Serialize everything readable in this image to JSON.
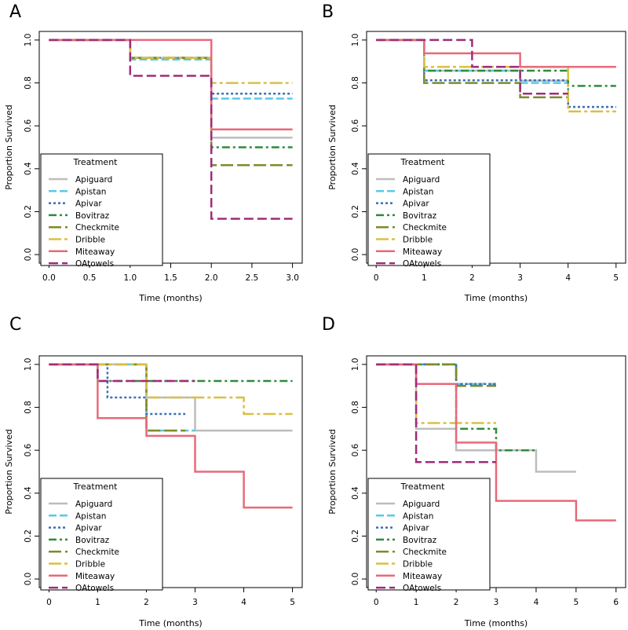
{
  "colors": {
    "Apiguard": "#bdbdbd",
    "Apistan": "#5bc8e8",
    "Apivar": "#3a6fb5",
    "Bovitraz": "#2e8b3a",
    "Checkmite": "#7d8b2a",
    "Dribble": "#d9c043",
    "Miteaway": "#e8697a",
    "OAtowels": "#a02c7a"
  },
  "legend": {
    "title": "Treatment",
    "items": [
      "Apiguard",
      "Apistan",
      "Apivar",
      "Bovitraz",
      "Checkmite",
      "Dribble",
      "Miteaway",
      "OAtowels"
    ]
  },
  "chart_data": [
    {
      "type": "line",
      "panel_label": "A",
      "xlabel": "Time (months)",
      "ylabel": "Proportion Survived",
      "xlim": [
        0,
        3
      ],
      "ylim": [
        0,
        1
      ],
      "xticks": [
        "0.0",
        "0.5",
        "1.0",
        "1.5",
        "2.0",
        "2.5",
        "3.0"
      ],
      "xtick_values": [
        0,
        0.5,
        1,
        1.5,
        2,
        2.5,
        3
      ],
      "yticks": [
        "0.0",
        "0.2",
        "0.4",
        "0.6",
        "0.8",
        "1.0"
      ],
      "series": [
        {
          "name": "Apiguard",
          "steps": [
            [
              0,
              1.0
            ],
            [
              1,
              0.917
            ],
            [
              2,
              0.545
            ],
            [
              3,
              0.545
            ]
          ]
        },
        {
          "name": "Apistan",
          "steps": [
            [
              0,
              1.0
            ],
            [
              1,
              0.909
            ],
            [
              2,
              0.727
            ],
            [
              3,
              0.727
            ]
          ]
        },
        {
          "name": "Apivar",
          "steps": [
            [
              0,
              1.0
            ],
            [
              1,
              0.917
            ],
            [
              2,
              0.75
            ],
            [
              3,
              0.75
            ]
          ]
        },
        {
          "name": "Bovitraz",
          "steps": [
            [
              0,
              1.0
            ],
            [
              1,
              0.917
            ],
            [
              2,
              0.5
            ],
            [
              3,
              0.5
            ]
          ]
        },
        {
          "name": "Checkmite",
          "steps": [
            [
              0,
              1.0
            ],
            [
              1,
              0.917
            ],
            [
              2,
              0.417
            ],
            [
              3,
              0.417
            ]
          ]
        },
        {
          "name": "Dribble",
          "steps": [
            [
              0,
              1.0
            ],
            [
              1,
              0.917
            ],
            [
              2,
              0.8
            ],
            [
              3,
              0.8
            ]
          ]
        },
        {
          "name": "Miteaway",
          "steps": [
            [
              0,
              1.0
            ],
            [
              2,
              0.583
            ],
            [
              3,
              0.583
            ]
          ]
        },
        {
          "name": "OAtowels",
          "steps": [
            [
              0,
              1.0
            ],
            [
              1,
              0.833
            ],
            [
              2,
              0.167
            ],
            [
              3,
              0.167
            ]
          ]
        }
      ]
    },
    {
      "type": "line",
      "panel_label": "B",
      "xlabel": "Time (months)",
      "ylabel": "Proportion Survived",
      "xlim": [
        0,
        5
      ],
      "ylim": [
        0,
        1
      ],
      "xticks": [
        "0",
        "1",
        "2",
        "3",
        "4",
        "5"
      ],
      "xtick_values": [
        0,
        1,
        2,
        3,
        4,
        5
      ],
      "yticks": [
        "0.0",
        "0.2",
        "0.4",
        "0.6",
        "0.8",
        "1.0"
      ],
      "series": [
        {
          "name": "Apiguard",
          "steps": [
            [
              0,
              1.0
            ],
            [
              1,
              0.857
            ],
            [
              3,
              0.81
            ],
            [
              4,
              0.81
            ]
          ]
        },
        {
          "name": "Apistan",
          "steps": [
            [
              0,
              1.0
            ],
            [
              1,
              0.857
            ],
            [
              3,
              0.8
            ],
            [
              4,
              0.8
            ]
          ]
        },
        {
          "name": "Apivar",
          "steps": [
            [
              0,
              1.0
            ],
            [
              1,
              0.812
            ],
            [
              4,
              0.688
            ],
            [
              5,
              0.688
            ]
          ]
        },
        {
          "name": "Bovitraz",
          "steps": [
            [
              0,
              1.0
            ],
            [
              1,
              0.857
            ],
            [
              4,
              0.786
            ],
            [
              5,
              0.786
            ]
          ]
        },
        {
          "name": "Checkmite",
          "steps": [
            [
              0,
              1.0
            ],
            [
              1,
              0.8
            ],
            [
              3,
              0.733
            ],
            [
              4,
              0.733
            ]
          ]
        },
        {
          "name": "Dribble",
          "steps": [
            [
              0,
              1.0
            ],
            [
              1,
              0.875
            ],
            [
              4,
              0.667
            ],
            [
              5,
              0.667
            ]
          ]
        },
        {
          "name": "Miteaway",
          "steps": [
            [
              0,
              1.0
            ],
            [
              1,
              0.938
            ],
            [
              3,
              0.875
            ],
            [
              5,
              0.875
            ]
          ]
        },
        {
          "name": "OAtowels",
          "steps": [
            [
              0,
              1.0
            ],
            [
              2,
              0.875
            ],
            [
              3,
              0.75
            ],
            [
              4,
              0.75
            ]
          ]
        }
      ]
    },
    {
      "type": "line",
      "panel_label": "C",
      "xlabel": "Time (months)",
      "ylabel": "Proportion Survived",
      "xlim": [
        0,
        5
      ],
      "ylim": [
        0,
        1
      ],
      "xticks": [
        "0",
        "1",
        "2",
        "3",
        "4",
        "5"
      ],
      "xtick_values": [
        0,
        1,
        2,
        3,
        4,
        5
      ],
      "yticks": [
        "0.0",
        "0.2",
        "0.4",
        "0.6",
        "0.8",
        "1.0"
      ],
      "series": [
        {
          "name": "Apiguard",
          "steps": [
            [
              0,
              1.0
            ],
            [
              2,
              0.846
            ],
            [
              3,
              0.692
            ],
            [
              5,
              0.692
            ]
          ]
        },
        {
          "name": "Apistan",
          "steps": [
            [
              0,
              1.0
            ],
            [
              2,
              0.692
            ],
            [
              3,
              0.692
            ]
          ]
        },
        {
          "name": "Apivar",
          "steps": [
            [
              0,
              1.0
            ],
            [
              1.2,
              0.846
            ],
            [
              2,
              0.769
            ],
            [
              2.8,
              0.769
            ]
          ]
        },
        {
          "name": "Bovitraz",
          "steps": [
            [
              0,
              1.0
            ],
            [
              1,
              0.923
            ],
            [
              5,
              0.923
            ]
          ]
        },
        {
          "name": "Checkmite",
          "steps": [
            [
              0,
              1.0
            ],
            [
              2,
              0.692
            ],
            [
              2.8,
              0.692
            ]
          ]
        },
        {
          "name": "Dribble",
          "steps": [
            [
              0,
              1.0
            ],
            [
              2,
              0.846
            ],
            [
              4,
              0.769
            ],
            [
              5,
              0.769
            ]
          ]
        },
        {
          "name": "Miteaway",
          "steps": [
            [
              0,
              1.0
            ],
            [
              1,
              0.75
            ],
            [
              2,
              0.667
            ],
            [
              3,
              0.5
            ],
            [
              4,
              0.333
            ],
            [
              5,
              0.333
            ]
          ]
        },
        {
          "name": "OAtowels",
          "steps": [
            [
              0,
              1.0
            ],
            [
              1,
              0.923
            ],
            [
              3,
              0.923
            ]
          ]
        }
      ]
    },
    {
      "type": "line",
      "panel_label": "D",
      "xlabel": "Time (months)",
      "ylabel": "Proportion Survived",
      "xlim": [
        0,
        6
      ],
      "ylim": [
        0,
        1
      ],
      "xticks": [
        "0",
        "1",
        "2",
        "3",
        "4",
        "5",
        "6"
      ],
      "xtick_values": [
        0,
        1,
        2,
        3,
        4,
        5,
        6
      ],
      "yticks": [
        "0.0",
        "0.2",
        "0.4",
        "0.6",
        "0.8",
        "1.0"
      ],
      "series": [
        {
          "name": "Apiguard",
          "steps": [
            [
              0,
              1.0
            ],
            [
              1,
              0.7
            ],
            [
              2,
              0.6
            ],
            [
              4,
              0.5
            ],
            [
              5,
              0.5
            ]
          ]
        },
        {
          "name": "Apistan",
          "steps": [
            [
              0,
              1.0
            ],
            [
              2,
              0.909
            ],
            [
              3,
              0.909
            ]
          ]
        },
        {
          "name": "Apivar",
          "steps": [
            [
              0,
              1.0
            ],
            [
              2,
              0.909
            ],
            [
              3,
              0.909
            ]
          ]
        },
        {
          "name": "Bovitraz",
          "steps": [
            [
              0,
              1.0
            ],
            [
              2,
              0.7
            ],
            [
              3,
              0.6
            ],
            [
              4,
              0.6
            ]
          ]
        },
        {
          "name": "Checkmite",
          "steps": [
            [
              0,
              1.0
            ],
            [
              2,
              0.9
            ],
            [
              3,
              0.9
            ]
          ]
        },
        {
          "name": "Dribble",
          "steps": [
            [
              0,
              1.0
            ],
            [
              1,
              0.727
            ],
            [
              3,
              0.727
            ]
          ]
        },
        {
          "name": "Miteaway",
          "steps": [
            [
              0,
              1.0
            ],
            [
              1,
              0.909
            ],
            [
              2,
              0.636
            ],
            [
              3,
              0.364
            ],
            [
              5,
              0.273
            ],
            [
              6,
              0.273
            ]
          ]
        },
        {
          "name": "OAtowels",
          "steps": [
            [
              0,
              1.0
            ],
            [
              1,
              0.545
            ],
            [
              3,
              0.545
            ]
          ]
        }
      ]
    }
  ]
}
